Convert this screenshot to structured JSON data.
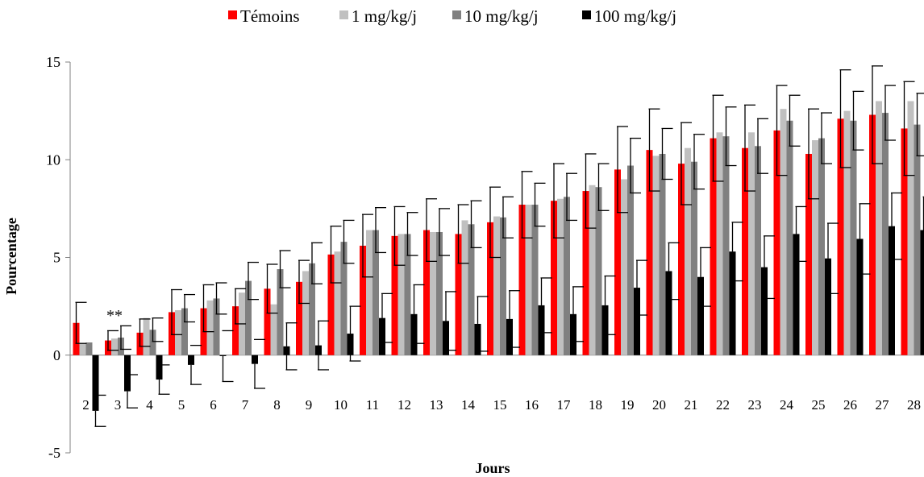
{
  "chart_data": {
    "type": "bar",
    "title": "",
    "xlabel": "Jours",
    "ylabel": "Pourcentage",
    "ylim": [
      -5,
      15
    ],
    "yticks": [
      -5,
      0,
      5,
      10,
      15
    ],
    "grid": false,
    "legend_position": "top",
    "categories": [
      "2",
      "3",
      "4",
      "5",
      "6",
      "7",
      "8",
      "9",
      "10",
      "11",
      "12",
      "13",
      "14",
      "15",
      "16",
      "17",
      "18",
      "19",
      "20",
      "21",
      "22",
      "23",
      "24",
      "25",
      "26",
      "27",
      "28"
    ],
    "annotations": [
      {
        "text": "**",
        "category": "3"
      }
    ],
    "series": [
      {
        "name": "Témoins",
        "color": "#ff0000",
        "values": [
          1.65,
          0.75,
          1.15,
          2.2,
          2.4,
          2.5,
          3.4,
          3.75,
          5.15,
          5.6,
          6.1,
          6.4,
          6.2,
          6.8,
          7.7,
          7.9,
          8.4,
          9.5,
          10.5,
          9.8,
          11.1,
          10.6,
          11.5,
          10.3,
          12.1,
          12.3,
          11.6
        ],
        "errors": [
          1.05,
          0.5,
          0.7,
          1.15,
          1.2,
          0.9,
          1.25,
          1.1,
          1.45,
          1.6,
          1.5,
          1.6,
          1.5,
          1.8,
          1.7,
          1.9,
          1.9,
          2.2,
          2.1,
          2.1,
          2.2,
          2.2,
          2.3,
          2.3,
          2.5,
          2.5,
          2.4
        ]
      },
      {
        "name": "1 mg/kg/j",
        "color": "#c0c0c0",
        "values": [
          0.6,
          0.85,
          1.9,
          2.3,
          2.8,
          3.2,
          2.6,
          4.3,
          5.3,
          6.4,
          6.2,
          6.3,
          6.9,
          7.1,
          7.7,
          8.0,
          8.7,
          9.0,
          10.2,
          10.6,
          11.4,
          11.4,
          12.6,
          11.0,
          12.5,
          13.0,
          13.0
        ]
      },
      {
        "name": "10 mg/kg/j",
        "color": "#808080",
        "values": [
          0.65,
          0.9,
          1.3,
          2.4,
          2.9,
          3.8,
          4.4,
          4.7,
          5.8,
          6.4,
          6.2,
          6.3,
          6.7,
          7.05,
          7.7,
          8.1,
          8.6,
          9.7,
          10.3,
          9.9,
          11.2,
          10.7,
          12.0,
          11.1,
          12.0,
          12.4,
          11.8
        ],
        "errors": [
          0.0,
          0.6,
          0.6,
          0.7,
          0.8,
          0.95,
          0.95,
          1.05,
          1.1,
          1.15,
          1.1,
          1.2,
          1.2,
          1.05,
          1.1,
          1.2,
          1.2,
          1.4,
          1.3,
          1.4,
          1.5,
          1.4,
          1.3,
          1.3,
          1.5,
          1.4,
          1.6
        ]
      },
      {
        "name": "100 mg/kg/j",
        "color": "#000000",
        "values": [
          -2.85,
          -1.85,
          -1.25,
          -0.5,
          -0.05,
          -0.45,
          0.45,
          0.5,
          1.1,
          1.9,
          2.1,
          1.75,
          1.6,
          1.85,
          2.55,
          2.1,
          2.55,
          3.45,
          4.3,
          4.0,
          5.3,
          4.5,
          6.2,
          4.95,
          5.95,
          6.6,
          6.4
        ],
        "errors": [
          0.8,
          0.85,
          0.75,
          1.0,
          1.3,
          1.25,
          1.2,
          1.25,
          1.4,
          1.25,
          1.5,
          1.5,
          1.4,
          1.45,
          1.4,
          1.4,
          1.5,
          1.4,
          1.45,
          1.5,
          1.5,
          1.6,
          1.4,
          1.8,
          1.8,
          1.7,
          1.7
        ]
      }
    ]
  }
}
